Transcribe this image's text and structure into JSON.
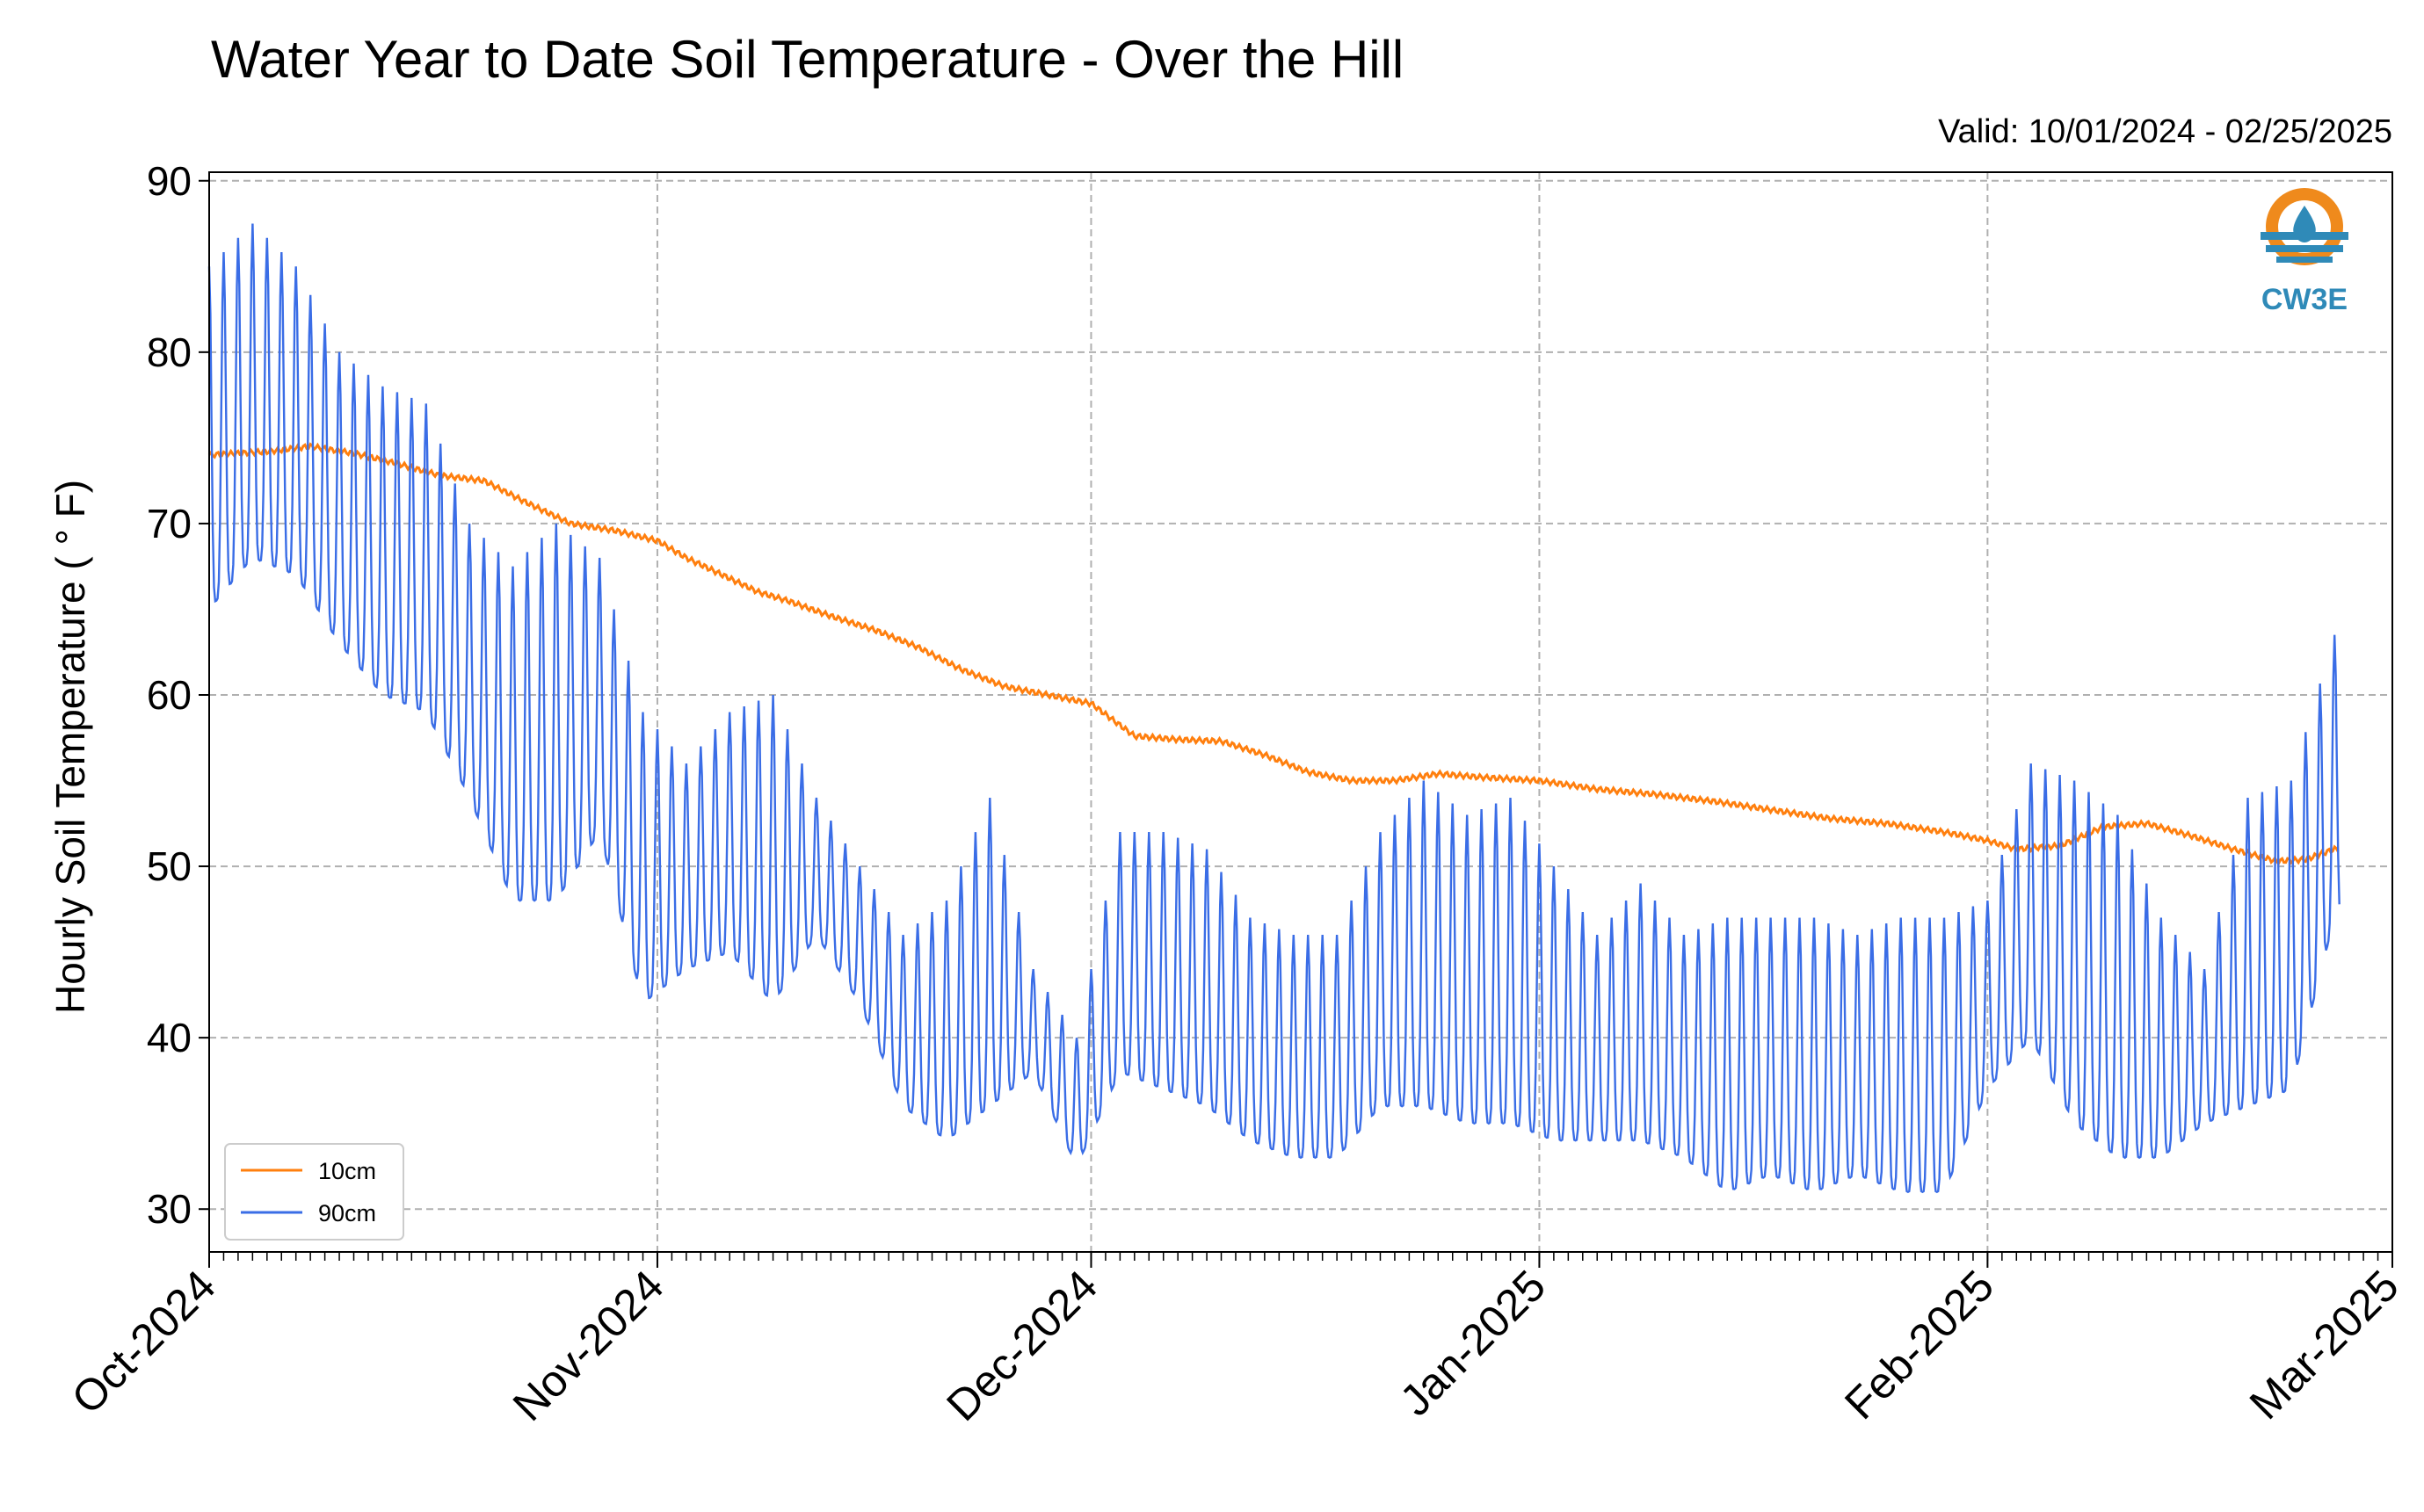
{
  "chart_data": {
    "type": "line",
    "title": "Water Year to Date Soil Temperature - Over the Hill",
    "subtitle": "Valid: 10/01/2024 - 02/25/2025",
    "ylabel": "Hourly Soil Temperature ( ° F)",
    "xlabel": "",
    "ylim": [
      27.5,
      90.5
    ],
    "yticks": [
      30,
      40,
      50,
      60,
      70,
      80,
      90
    ],
    "xlim": [
      "2024-10-01",
      "2025-03-01"
    ],
    "xticks": [
      {
        "date": "2024-10-01",
        "label": "Oct-2024"
      },
      {
        "date": "2024-11-01",
        "label": "Nov-2024"
      },
      {
        "date": "2024-12-01",
        "label": "Dec-2024"
      },
      {
        "date": "2025-01-01",
        "label": "Jan-2025"
      },
      {
        "date": "2025-02-01",
        "label": "Feb-2025"
      },
      {
        "date": "2025-03-01",
        "label": "Mar-2025"
      }
    ],
    "grid": true,
    "legend_position": "lower-left",
    "series": [
      {
        "name": "10cm",
        "color": "#ff7f0e",
        "x": [
          "2024-10-01",
          "2024-10-05",
          "2024-10-08",
          "2024-10-11",
          "2024-10-14",
          "2024-10-17",
          "2024-10-20",
          "2024-10-23",
          "2024-10-26",
          "2024-10-29",
          "2024-11-01",
          "2024-11-03",
          "2024-11-06",
          "2024-11-08",
          "2024-11-10",
          "2024-11-13",
          "2024-11-16",
          "2024-11-19",
          "2024-11-22",
          "2024-11-25",
          "2024-11-28",
          "2024-12-01",
          "2024-12-04",
          "2024-12-07",
          "2024-12-10",
          "2024-12-13",
          "2024-12-16",
          "2024-12-19",
          "2024-12-22",
          "2024-12-25",
          "2024-12-28",
          "2025-01-01",
          "2025-01-05",
          "2025-01-09",
          "2025-01-13",
          "2025-01-17",
          "2025-01-21",
          "2025-01-25",
          "2025-01-29",
          "2025-02-01",
          "2025-02-03",
          "2025-02-06",
          "2025-02-09",
          "2025-02-12",
          "2025-02-15",
          "2025-02-18",
          "2025-02-21",
          "2025-02-23",
          "2025-02-25"
        ],
        "values": [
          74.0,
          74.2,
          74.5,
          74.1,
          73.5,
          72.8,
          72.5,
          71.2,
          70.0,
          69.6,
          69.0,
          68.0,
          66.8,
          66.0,
          65.5,
          64.6,
          63.8,
          62.8,
          61.5,
          60.5,
          60.0,
          59.5,
          57.6,
          57.4,
          57.3,
          56.5,
          55.5,
          55.0,
          55.0,
          55.4,
          55.2,
          55.0,
          54.5,
          54.2,
          53.8,
          53.3,
          52.8,
          52.5,
          52.0,
          51.5,
          51.0,
          51.2,
          52.3,
          52.5,
          51.8,
          51.0,
          50.3,
          50.4,
          51.0
        ]
      },
      {
        "name": "90cm",
        "color": "#3a6de6",
        "x": [
          "2024-10-01",
          "2024-10-04",
          "2024-10-07",
          "2024-10-10",
          "2024-10-13",
          "2024-10-16",
          "2024-10-19",
          "2024-10-22",
          "2024-10-25",
          "2024-10-28",
          "2024-10-31",
          "2024-11-03",
          "2024-11-06",
          "2024-11-09",
          "2024-11-12",
          "2024-11-15",
          "2024-11-18",
          "2024-11-21",
          "2024-11-24",
          "2024-11-27",
          "2024-11-30",
          "2024-12-03",
          "2024-12-06",
          "2024-12-09",
          "2024-12-12",
          "2024-12-15",
          "2024-12-18",
          "2024-12-21",
          "2024-12-24",
          "2024-12-27",
          "2024-12-30",
          "2025-01-02",
          "2025-01-05",
          "2025-01-08",
          "2025-01-11",
          "2025-01-14",
          "2025-01-17",
          "2025-01-20",
          "2025-01-23",
          "2025-01-26",
          "2025-01-29",
          "2025-02-01",
          "2025-02-04",
          "2025-02-07",
          "2025-02-10",
          "2025-02-13",
          "2025-02-16",
          "2025-02-19",
          "2025-02-22",
          "2025-02-25"
        ],
        "max": [
          85,
          87.5,
          85,
          80,
          78,
          77,
          70,
          67.5,
          70,
          68,
          59,
          56,
          59,
          60,
          54,
          50,
          46,
          48,
          54,
          44,
          40,
          52,
          52,
          51,
          47,
          46,
          46,
          52,
          55,
          53,
          54,
          50,
          46,
          49,
          46,
          47,
          47,
          47,
          46,
          47,
          47,
          48,
          56,
          55,
          53,
          47,
          44,
          54,
          55,
          63.5
        ],
        "min": [
          65,
          68,
          67,
          63,
          60,
          59,
          54,
          48,
          48,
          52,
          42,
          44,
          45,
          42,
          46,
          42,
          36,
          34,
          36,
          38,
          32.5,
          38,
          37,
          36,
          34,
          33,
          33,
          36,
          36,
          35,
          35,
          34,
          34,
          34,
          33,
          31,
          32,
          31,
          32,
          31,
          31,
          37,
          40,
          35,
          33,
          33,
          35,
          36,
          37,
          47
        ]
      }
    ]
  },
  "logo": {
    "text": "CW3E",
    "color_orange": "#ef8a1c",
    "color_blue": "#2f8ab8"
  }
}
